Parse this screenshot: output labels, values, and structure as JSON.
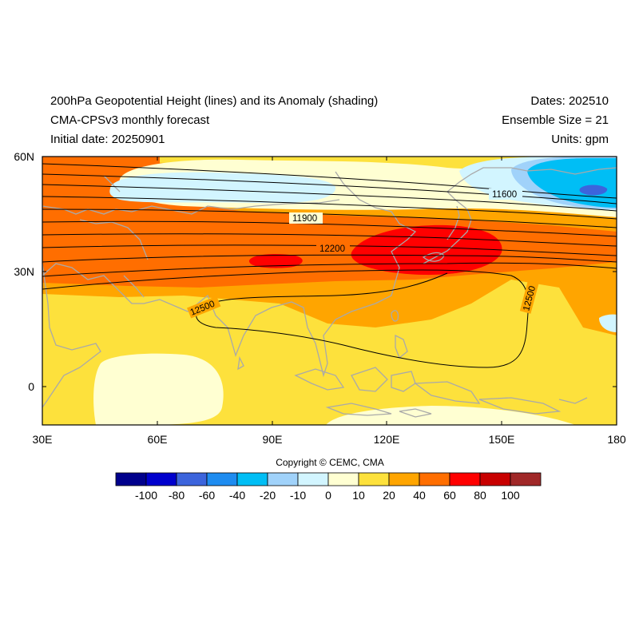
{
  "header": {
    "title": "200hPa Geopotential Height (lines) and its Anomaly (shading)",
    "model": "CMA-CPSv3 monthly forecast",
    "initial_date": "Initial date: 20250901",
    "dates": "Dates: 202510",
    "ensemble": "Ensemble Size = 21",
    "units": "Units: gpm"
  },
  "copyright": "Copyright © CEMC, CMA",
  "map": {
    "lon_range": [
      30,
      180
    ],
    "lat_range": [
      -10,
      60
    ],
    "lon_ticks": [
      "30E",
      "60E",
      "90E",
      "120E",
      "150E",
      "180"
    ],
    "lat_ticks": [
      "60N",
      "30N",
      "0"
    ],
    "contour_labels": [
      "11600",
      "11900",
      "12200",
      "12500",
      "12500"
    ]
  },
  "colorbar": {
    "colors": [
      "#00008c",
      "#0000cd",
      "#3c64dc",
      "#1e8cf0",
      "#00bef5",
      "#a0d2fa",
      "#d2f5ff",
      "#ffffd2",
      "#fde13c",
      "#ffa500",
      "#ff6e00",
      "#ff0000",
      "#c80000",
      "#a02828"
    ],
    "labels": [
      "-100",
      "-80",
      "-60",
      "-40",
      "-20",
      "-10",
      "0",
      "10",
      "20",
      "40",
      "60",
      "80",
      "100"
    ]
  }
}
